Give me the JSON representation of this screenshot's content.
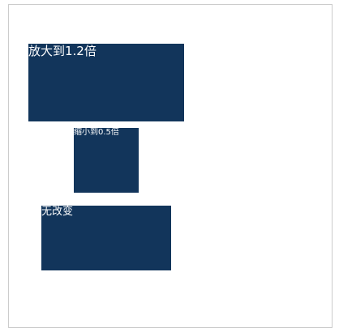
{
  "boxes": {
    "scaled_up": {
      "label": "放大到1.2倍"
    },
    "scaled_down": {
      "label": "缩小到0.5倍"
    },
    "unchanged": {
      "label": "无改变"
    }
  },
  "colors": {
    "box_fill": "#12355b",
    "text": "#ffffff",
    "frame_border": "#cccccc"
  }
}
